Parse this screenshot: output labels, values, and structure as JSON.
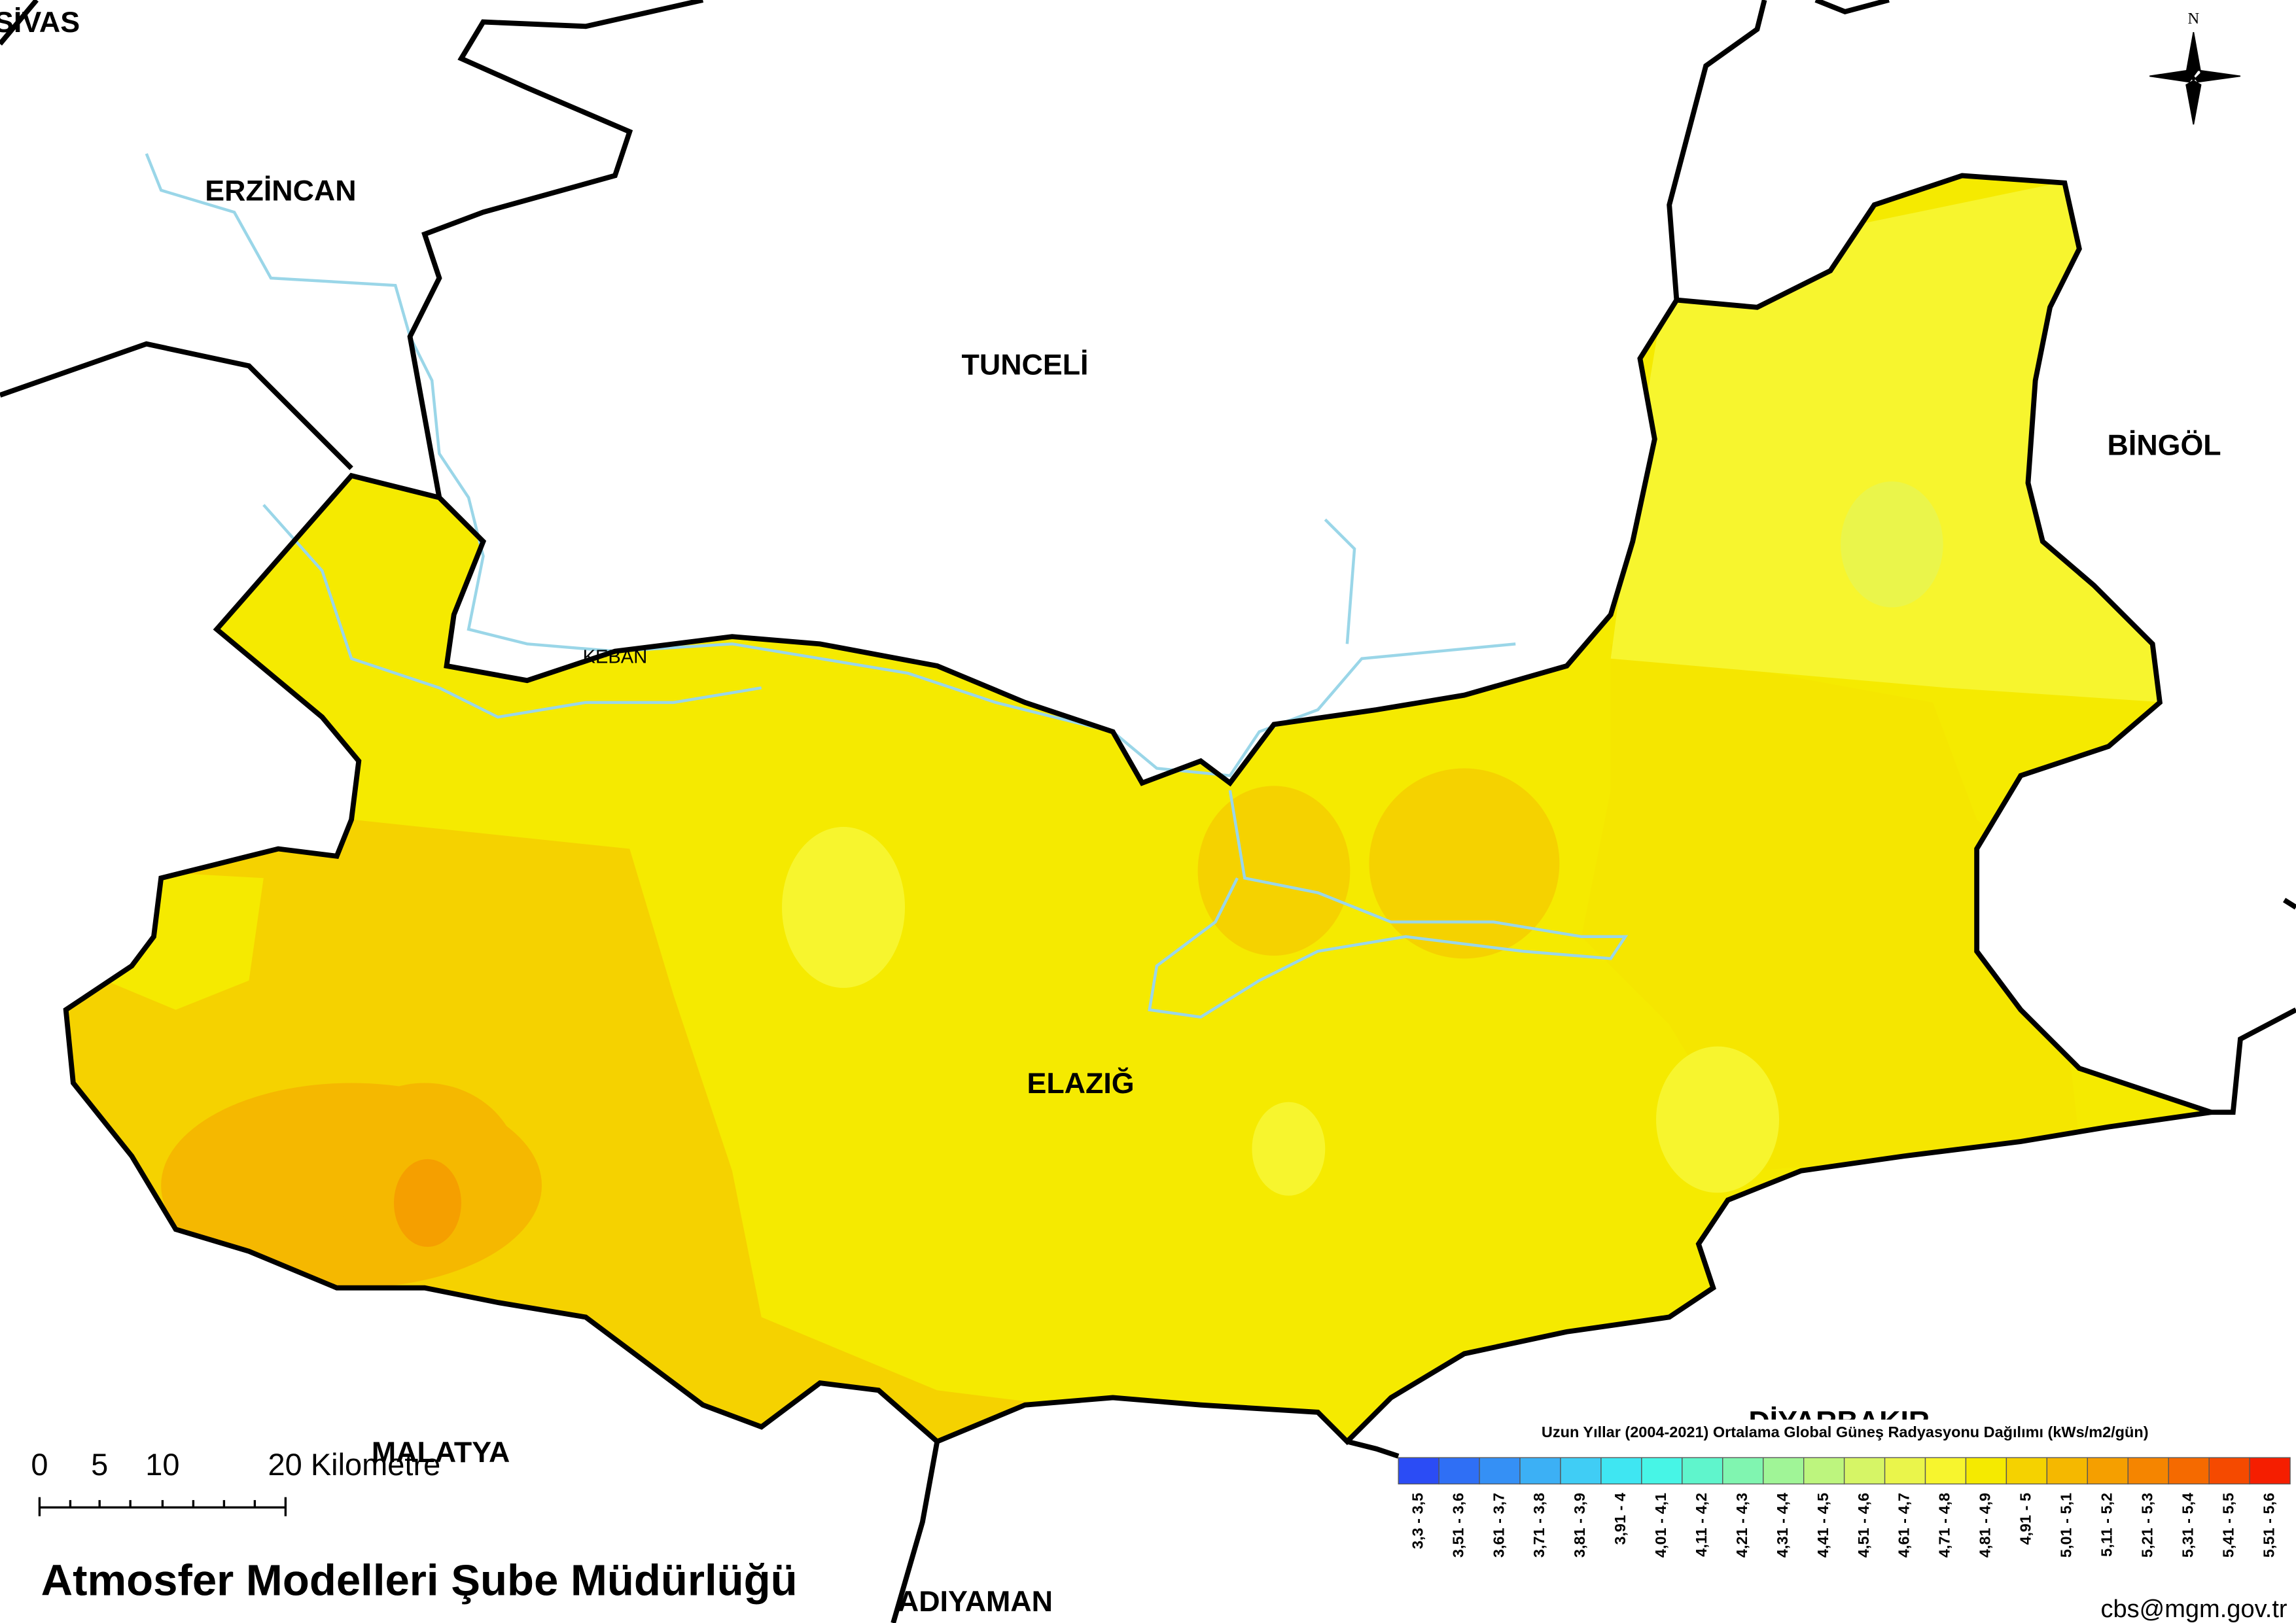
{
  "compass": "N",
  "provinces": [
    "SİVAS",
    "ERZİNCAN",
    "TUNCELİ",
    "BİNGÖL",
    "ELAZIĞ",
    "MALATYA",
    "DİYARBAKIR",
    "ADIYAMAN"
  ],
  "places": [
    "KEBAN"
  ],
  "scale_bar": {
    "labels": [
      "0",
      "5",
      "10",
      "20 Kilometre"
    ]
  },
  "legend": {
    "title": "Uzun Yıllar (2004-2021) Ortalama Global Güneş Radyasyonu Dağılımı (kWs/m2/gün)",
    "classes": [
      "3,3 - 3,5",
      "3,51 - 3,6",
      "3,61 - 3,7",
      "3,71 - 3,8",
      "3,81 - 3,9",
      "3,91 - 4",
      "4,01 - 4,1",
      "4,11 - 4,2",
      "4,21 - 4,3",
      "4,31 - 4,4",
      "4,41 - 4,5",
      "4,51 - 4,6",
      "4,61 - 4,7",
      "4,71 - 4,8",
      "4,81 - 4,9",
      "4,91 - 5",
      "5,01 - 5,1",
      "5,11 - 5,2",
      "5,21 - 5,3",
      "5,31 - 5,4",
      "5,41 - 5,5",
      "5,51 - 5,6"
    ],
    "colors": [
      "#2b4cf5",
      "#2f6ff5",
      "#3590f5",
      "#3cb0f5",
      "#40cdf5",
      "#3fe6f2",
      "#47f5e6",
      "#5ff5cc",
      "#80f5b0",
      "#a0f597",
      "#bdf57e",
      "#d6f566",
      "#eaf54b",
      "#f7f52e",
      "#f5ea00",
      "#f5d200",
      "#f5b800",
      "#f59f00",
      "#f58500",
      "#f56a00",
      "#f54a00",
      "#f51e00"
    ]
  },
  "footer": {
    "title": "Atmosfer Modelleri Şube Müdürlüğü",
    "credit": "cbs@mgm.gov.tr"
  }
}
